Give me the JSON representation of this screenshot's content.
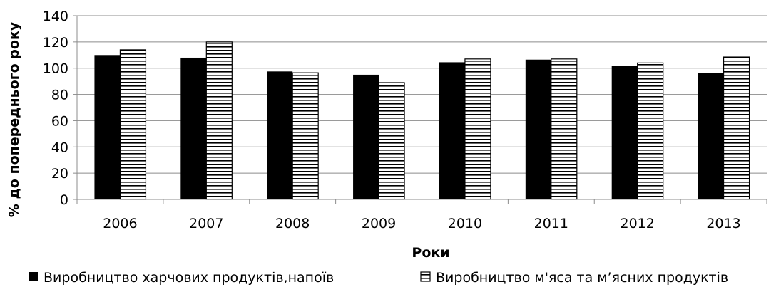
{
  "chart_data": {
    "type": "bar",
    "title": "",
    "xlabel": "Роки",
    "ylabel": "% до попереднього року",
    "categories": [
      "2006",
      "2007",
      "2008",
      "2009",
      "2010",
      "2011",
      "2012",
      "2013"
    ],
    "ylim": [
      0,
      140
    ],
    "yticks": [
      0,
      20,
      40,
      60,
      80,
      100,
      120,
      140
    ],
    "grid": true,
    "legend_position": "bottom",
    "series": [
      {
        "name": "Виробництво харчових продуктів,напоїв",
        "values": [
          110,
          108,
          97.5,
          95,
          104.5,
          106.5,
          101.5,
          96.5
        ],
        "fill": "solid",
        "color": "#000000"
      },
      {
        "name": "Виробництво м'яса та м’ясних продуктів",
        "values": [
          114,
          120,
          96.5,
          89,
          107,
          107,
          104,
          108.5
        ],
        "fill": "horizontal-stripes",
        "color": "#000000"
      }
    ]
  }
}
